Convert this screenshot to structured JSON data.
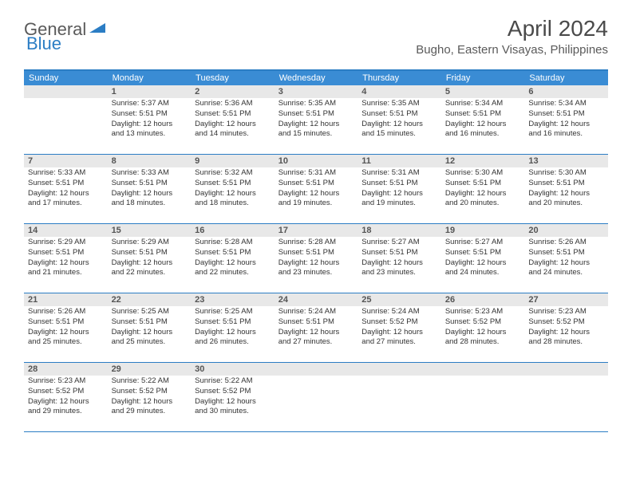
{
  "logo": {
    "general": "General",
    "blue": "Blue"
  },
  "title": "April 2024",
  "location": "Bugho, Eastern Visayas, Philippines",
  "colors": {
    "header_bg": "#3a8cd4",
    "header_text": "#ffffff",
    "border": "#2b7dc4",
    "daynum_bg": "#e8e8e8",
    "logo_gray": "#5a5a5a",
    "logo_blue": "#2b7dc4"
  },
  "day_names": [
    "Sunday",
    "Monday",
    "Tuesday",
    "Wednesday",
    "Thursday",
    "Friday",
    "Saturday"
  ],
  "weeks": [
    [
      {
        "day": "",
        "sunrise": "",
        "sunset": "",
        "daylight": ""
      },
      {
        "day": "1",
        "sunrise": "Sunrise: 5:37 AM",
        "sunset": "Sunset: 5:51 PM",
        "daylight": "Daylight: 12 hours and 13 minutes."
      },
      {
        "day": "2",
        "sunrise": "Sunrise: 5:36 AM",
        "sunset": "Sunset: 5:51 PM",
        "daylight": "Daylight: 12 hours and 14 minutes."
      },
      {
        "day": "3",
        "sunrise": "Sunrise: 5:35 AM",
        "sunset": "Sunset: 5:51 PM",
        "daylight": "Daylight: 12 hours and 15 minutes."
      },
      {
        "day": "4",
        "sunrise": "Sunrise: 5:35 AM",
        "sunset": "Sunset: 5:51 PM",
        "daylight": "Daylight: 12 hours and 15 minutes."
      },
      {
        "day": "5",
        "sunrise": "Sunrise: 5:34 AM",
        "sunset": "Sunset: 5:51 PM",
        "daylight": "Daylight: 12 hours and 16 minutes."
      },
      {
        "day": "6",
        "sunrise": "Sunrise: 5:34 AM",
        "sunset": "Sunset: 5:51 PM",
        "daylight": "Daylight: 12 hours and 16 minutes."
      }
    ],
    [
      {
        "day": "7",
        "sunrise": "Sunrise: 5:33 AM",
        "sunset": "Sunset: 5:51 PM",
        "daylight": "Daylight: 12 hours and 17 minutes."
      },
      {
        "day": "8",
        "sunrise": "Sunrise: 5:33 AM",
        "sunset": "Sunset: 5:51 PM",
        "daylight": "Daylight: 12 hours and 18 minutes."
      },
      {
        "day": "9",
        "sunrise": "Sunrise: 5:32 AM",
        "sunset": "Sunset: 5:51 PM",
        "daylight": "Daylight: 12 hours and 18 minutes."
      },
      {
        "day": "10",
        "sunrise": "Sunrise: 5:31 AM",
        "sunset": "Sunset: 5:51 PM",
        "daylight": "Daylight: 12 hours and 19 minutes."
      },
      {
        "day": "11",
        "sunrise": "Sunrise: 5:31 AM",
        "sunset": "Sunset: 5:51 PM",
        "daylight": "Daylight: 12 hours and 19 minutes."
      },
      {
        "day": "12",
        "sunrise": "Sunrise: 5:30 AM",
        "sunset": "Sunset: 5:51 PM",
        "daylight": "Daylight: 12 hours and 20 minutes."
      },
      {
        "day": "13",
        "sunrise": "Sunrise: 5:30 AM",
        "sunset": "Sunset: 5:51 PM",
        "daylight": "Daylight: 12 hours and 20 minutes."
      }
    ],
    [
      {
        "day": "14",
        "sunrise": "Sunrise: 5:29 AM",
        "sunset": "Sunset: 5:51 PM",
        "daylight": "Daylight: 12 hours and 21 minutes."
      },
      {
        "day": "15",
        "sunrise": "Sunrise: 5:29 AM",
        "sunset": "Sunset: 5:51 PM",
        "daylight": "Daylight: 12 hours and 22 minutes."
      },
      {
        "day": "16",
        "sunrise": "Sunrise: 5:28 AM",
        "sunset": "Sunset: 5:51 PM",
        "daylight": "Daylight: 12 hours and 22 minutes."
      },
      {
        "day": "17",
        "sunrise": "Sunrise: 5:28 AM",
        "sunset": "Sunset: 5:51 PM",
        "daylight": "Daylight: 12 hours and 23 minutes."
      },
      {
        "day": "18",
        "sunrise": "Sunrise: 5:27 AM",
        "sunset": "Sunset: 5:51 PM",
        "daylight": "Daylight: 12 hours and 23 minutes."
      },
      {
        "day": "19",
        "sunrise": "Sunrise: 5:27 AM",
        "sunset": "Sunset: 5:51 PM",
        "daylight": "Daylight: 12 hours and 24 minutes."
      },
      {
        "day": "20",
        "sunrise": "Sunrise: 5:26 AM",
        "sunset": "Sunset: 5:51 PM",
        "daylight": "Daylight: 12 hours and 24 minutes."
      }
    ],
    [
      {
        "day": "21",
        "sunrise": "Sunrise: 5:26 AM",
        "sunset": "Sunset: 5:51 PM",
        "daylight": "Daylight: 12 hours and 25 minutes."
      },
      {
        "day": "22",
        "sunrise": "Sunrise: 5:25 AM",
        "sunset": "Sunset: 5:51 PM",
        "daylight": "Daylight: 12 hours and 25 minutes."
      },
      {
        "day": "23",
        "sunrise": "Sunrise: 5:25 AM",
        "sunset": "Sunset: 5:51 PM",
        "daylight": "Daylight: 12 hours and 26 minutes."
      },
      {
        "day": "24",
        "sunrise": "Sunrise: 5:24 AM",
        "sunset": "Sunset: 5:51 PM",
        "daylight": "Daylight: 12 hours and 27 minutes."
      },
      {
        "day": "25",
        "sunrise": "Sunrise: 5:24 AM",
        "sunset": "Sunset: 5:52 PM",
        "daylight": "Daylight: 12 hours and 27 minutes."
      },
      {
        "day": "26",
        "sunrise": "Sunrise: 5:23 AM",
        "sunset": "Sunset: 5:52 PM",
        "daylight": "Daylight: 12 hours and 28 minutes."
      },
      {
        "day": "27",
        "sunrise": "Sunrise: 5:23 AM",
        "sunset": "Sunset: 5:52 PM",
        "daylight": "Daylight: 12 hours and 28 minutes."
      }
    ],
    [
      {
        "day": "28",
        "sunrise": "Sunrise: 5:23 AM",
        "sunset": "Sunset: 5:52 PM",
        "daylight": "Daylight: 12 hours and 29 minutes."
      },
      {
        "day": "29",
        "sunrise": "Sunrise: 5:22 AM",
        "sunset": "Sunset: 5:52 PM",
        "daylight": "Daylight: 12 hours and 29 minutes."
      },
      {
        "day": "30",
        "sunrise": "Sunrise: 5:22 AM",
        "sunset": "Sunset: 5:52 PM",
        "daylight": "Daylight: 12 hours and 30 minutes."
      },
      {
        "day": "",
        "sunrise": "",
        "sunset": "",
        "daylight": ""
      },
      {
        "day": "",
        "sunrise": "",
        "sunset": "",
        "daylight": ""
      },
      {
        "day": "",
        "sunrise": "",
        "sunset": "",
        "daylight": ""
      },
      {
        "day": "",
        "sunrise": "",
        "sunset": "",
        "daylight": ""
      }
    ]
  ]
}
